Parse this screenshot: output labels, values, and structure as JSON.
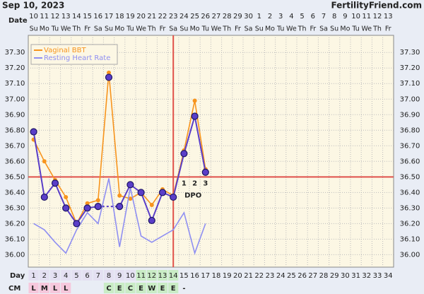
{
  "header": {
    "date": "Sep 10, 2023",
    "site": "FertilityFriend.com"
  },
  "chart_data": {
    "type": "line",
    "date_label": "Date",
    "dates": [
      10,
      11,
      12,
      13,
      14,
      15,
      16,
      17,
      18,
      19,
      20,
      21,
      22,
      23,
      24,
      25,
      26,
      27,
      28,
      29,
      30,
      1,
      2,
      3,
      4,
      5,
      6,
      7,
      8,
      9,
      10,
      11,
      12,
      13
    ],
    "weekdays": [
      "Su",
      "Mo",
      "Tu",
      "We",
      "Th",
      "Fr",
      "Sa",
      "Su",
      "Mo",
      "Tu",
      "We",
      "Th",
      "Fr",
      "Sa",
      "Su",
      "Mo",
      "Tu",
      "We",
      "Th",
      "Fr",
      "Sa",
      "Su",
      "Mo",
      "Tu",
      "We",
      "Th",
      "Fr",
      "Sa",
      "Su",
      "Mo",
      "Tu",
      "We",
      "Th",
      "Fr"
    ],
    "x_label": "Day",
    "categories": [
      1,
      2,
      3,
      4,
      5,
      6,
      7,
      8,
      9,
      10,
      11,
      12,
      13,
      14,
      15,
      16,
      17,
      18,
      19,
      20,
      21,
      22,
      23,
      24,
      25,
      26,
      27,
      28,
      29,
      30,
      31,
      32,
      33,
      34
    ],
    "day_fill": [
      "#e4e0f2",
      "#e4e0f2",
      "#e4e0f2",
      "#e4e0f2",
      "#e4e0f2",
      "#e4e0f2",
      "#e4e0f2",
      "#e4e0f2",
      "#e4e0f2",
      "#e4e0f2",
      "#c9ecc5",
      "#c9ecc5",
      "#c9ecc5",
      "#c9ecc5",
      null,
      null,
      null,
      null,
      null,
      null,
      null,
      null,
      null,
      null,
      null,
      null,
      null,
      null,
      null,
      null,
      null,
      null,
      null,
      null
    ],
    "cm_label": "CM",
    "cm": [
      "L",
      "M",
      "L",
      "L",
      null,
      null,
      null,
      "C",
      "E",
      "C",
      "E",
      "W",
      "E",
      "E",
      "-",
      null,
      null,
      null,
      null,
      null,
      null,
      null,
      null,
      null,
      null,
      null,
      null,
      null,
      null,
      null,
      null,
      null,
      null,
      null
    ],
    "cm_fill": [
      "#f6c8dc",
      "#f6c8dc",
      "#f6c8dc",
      "#f6c8dc",
      null,
      null,
      null,
      "#c9ecc5",
      "#c9ecc5",
      "#c9ecc5",
      "#c9ecc5",
      "#c9ecc5",
      "#c9ecc5",
      "#c9ecc5",
      null,
      null,
      null,
      null,
      null,
      null,
      null,
      null,
      null,
      null,
      null,
      null,
      null,
      null,
      null,
      null,
      null,
      null,
      null,
      null
    ],
    "series": [
      {
        "name": "Vaginal BBT",
        "color": "#f7941d",
        "marker": 3,
        "values": [
          36.74,
          36.6,
          36.48,
          36.37,
          36.2,
          36.33,
          36.35,
          37.17,
          36.38,
          36.36,
          36.4,
          36.32,
          36.42,
          36.38,
          36.67,
          36.99,
          36.55,
          null,
          null,
          null,
          null,
          null,
          null,
          null,
          null,
          null,
          null,
          null,
          null,
          null,
          null,
          null,
          null,
          null
        ]
      },
      {
        "name": "Resting Heart Rate",
        "color": "#8f8ff2",
        "marker": 0,
        "values": [
          36.2,
          36.16,
          36.08,
          36.01,
          36.16,
          36.27,
          36.2,
          36.49,
          36.05,
          36.43,
          36.12,
          36.08,
          36.12,
          36.16,
          36.27,
          36.01,
          36.2,
          null,
          null,
          null,
          null,
          null,
          null,
          null,
          null,
          null,
          null,
          null,
          null,
          null,
          null,
          null,
          null,
          null
        ]
      },
      {
        "color": "#5a3ec8",
        "marker": 4.5,
        "excluded": [
          8
        ],
        "values": [
          36.79,
          36.37,
          36.46,
          36.3,
          36.2,
          36.3,
          36.31,
          37.14,
          36.31,
          36.45,
          36.4,
          36.22,
          36.4,
          36.37,
          36.65,
          36.89,
          36.53,
          null,
          null,
          null,
          null,
          null,
          null,
          null,
          null,
          null,
          null,
          null,
          null,
          null,
          null,
          null,
          null,
          null
        ]
      }
    ],
    "ylim": [
      35.92,
      37.41
    ],
    "yticks": [
      {
        "value": 36,
        "label": "36.00"
      },
      {
        "value": 36.1,
        "label": "36.10"
      },
      {
        "value": 36.2,
        "label": "36.20"
      },
      {
        "value": 36.3,
        "label": "36.30"
      },
      {
        "value": 36.4,
        "label": "36.40"
      },
      {
        "value": 36.5,
        "label": "36.50"
      },
      {
        "value": 36.6,
        "label": "36.60"
      },
      {
        "value": 36.7,
        "label": "36.70"
      },
      {
        "value": 36.8,
        "label": "36.80"
      },
      {
        "value": 36.9,
        "label": "36.90"
      },
      {
        "value": 37,
        "label": "37.00"
      },
      {
        "value": 37.1,
        "label": "37.10"
      },
      {
        "value": 37.2,
        "label": "37.20"
      },
      {
        "value": 37.3,
        "label": "37.30"
      }
    ],
    "coverline": 36.5,
    "ovulation_day": 14,
    "line_color": "#e0504a",
    "dpo": [
      1,
      2,
      3
    ],
    "dpo_label": "DPO"
  }
}
